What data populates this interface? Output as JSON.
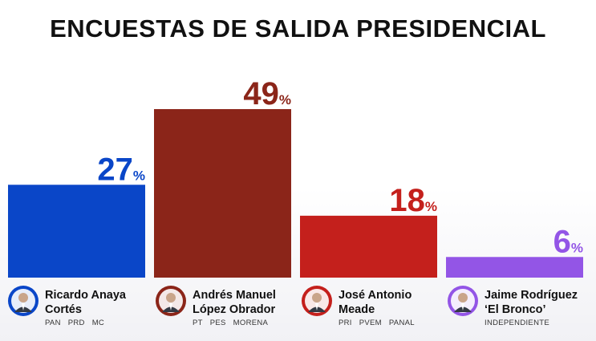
{
  "chart_data": {
    "type": "bar",
    "title": "ENCUESTAS DE SALIDA PRESIDENCIAL",
    "categories": [
      "Ricardo Anaya Cortés",
      "Andrés Manuel López Obrador",
      "José Antonio Meade",
      "Jaime Rodríguez ‘El Bronco’"
    ],
    "values": [
      27,
      49,
      18,
      6
    ],
    "value_suffix": "%",
    "ylim": [
      0,
      49
    ],
    "grid": false,
    "legend": "none",
    "colors": [
      "#0a46c8",
      "#8b2519",
      "#c4201c",
      "#9355e6"
    ]
  },
  "candidates": [
    {
      "name_line1": "Ricardo Anaya",
      "name_line2": "Cortés",
      "parties": [
        "PAN",
        "PRD",
        "MC"
      ],
      "avatar_color": "#0a46c8",
      "icon": "candidate-portrait-icon"
    },
    {
      "name_line1": "Andrés Manuel",
      "name_line2": "López Obrador",
      "parties": [
        "PT",
        "PES",
        "MORENA"
      ],
      "avatar_color": "#8b2519",
      "icon": "candidate-portrait-icon"
    },
    {
      "name_line1": "José Antonio",
      "name_line2": "Meade",
      "parties": [
        "PRI",
        "PVEM",
        "PANAL"
      ],
      "avatar_color": "#c4201c",
      "icon": "candidate-portrait-icon"
    },
    {
      "name_line1": "Jaime Rodríguez",
      "name_line2": "‘El Bronco’",
      "parties": [
        "INDEPENDIENTE"
      ],
      "avatar_color": "#9355e6",
      "icon": "candidate-portrait-icon"
    }
  ]
}
